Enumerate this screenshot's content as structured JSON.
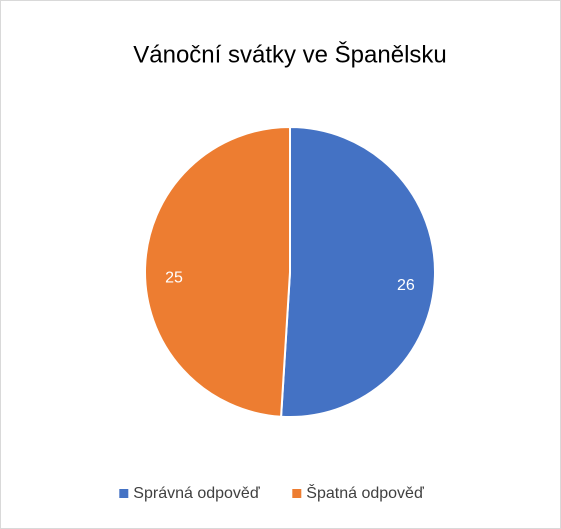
{
  "chart_data": {
    "type": "pie",
    "title": "Vánoční svátky ve Španělsku",
    "categories": [
      "Správná odpověď",
      "Špatná odpověď"
    ],
    "values": [
      26,
      25
    ],
    "colors": [
      "#4472c4",
      "#ed7d31"
    ],
    "legend": "bottom"
  }
}
